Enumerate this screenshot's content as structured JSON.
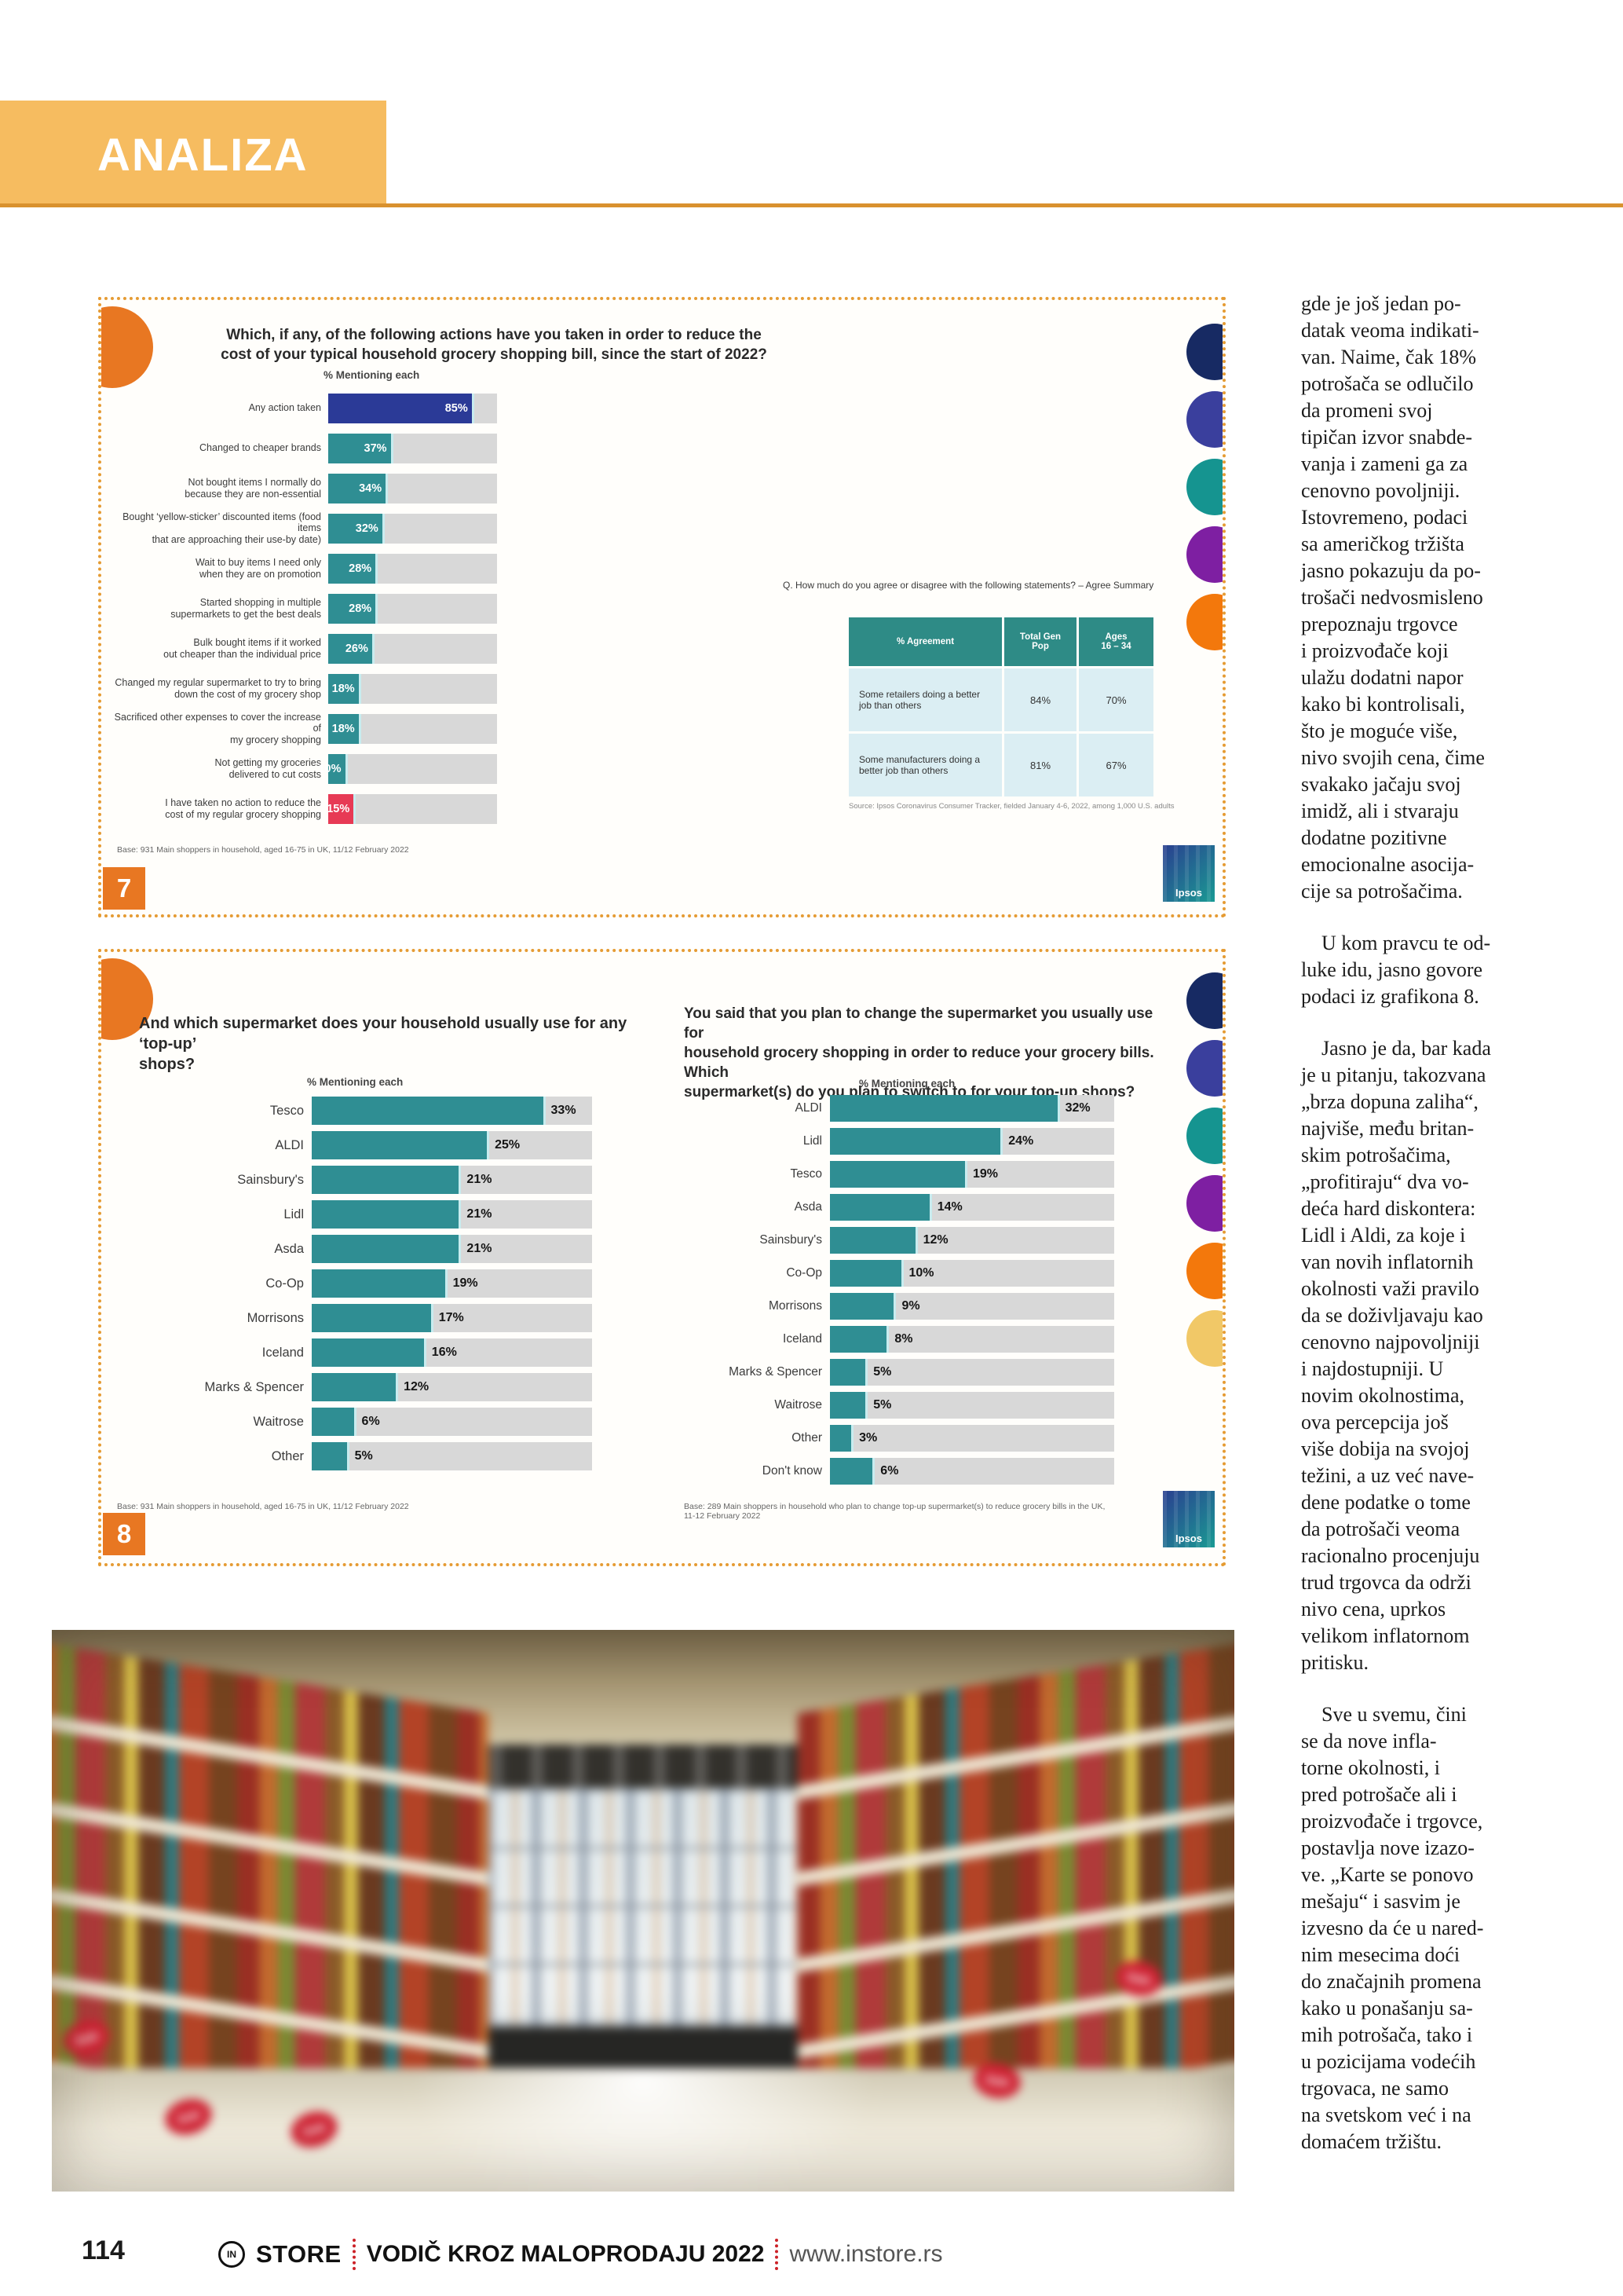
{
  "header": {
    "title": "ANALIZA"
  },
  "figure7": {
    "badge": "7",
    "corner_color": "#e87722",
    "question": "Which, if any, of the following actions have you taken in order to reduce the\ncost of your typical household grocery shopping bill, since the start of 2022?",
    "axis_label": "% Mentioning each",
    "rows": [
      {
        "label": "Any action taken",
        "value": 85,
        "value_label": "85%",
        "color": "#2b3a97"
      },
      {
        "label": "Changed to cheaper brands",
        "value": 37,
        "value_label": "37%"
      },
      {
        "label": "Not bought items I normally do\nbecause they are non-essential",
        "value": 34,
        "value_label": "34%"
      },
      {
        "label": "Bought ‘yellow-sticker’ discounted items (food items\nthat are approaching their use-by date)",
        "value": 32,
        "value_label": "32%"
      },
      {
        "label": "Wait to buy items I need only\nwhen they are on promotion",
        "value": 28,
        "value_label": "28%"
      },
      {
        "label": "Started shopping in multiple\nsupermarkets to get the best deals",
        "value": 28,
        "value_label": "28%"
      },
      {
        "label": "Bulk bought items if it worked\nout cheaper than the individual price",
        "value": 26,
        "value_label": "26%"
      },
      {
        "label": "Changed my regular supermarket to try to bring\ndown the cost of my grocery shop",
        "value": 18,
        "value_label": "18%"
      },
      {
        "label": "Sacrificed other expenses to cover the increase of\nmy grocery shopping",
        "value": 18,
        "value_label": "18%"
      },
      {
        "label": "Not getting my groceries\ndelivered to cut costs",
        "value": 10,
        "value_label": "10%"
      },
      {
        "label": "I have taken no action to reduce the\ncost of my regular grocery shopping",
        "value": 15,
        "value_label": "15%",
        "color": "#e73a55"
      }
    ],
    "base_note": "Base: 931 Main shoppers in household, aged 16-75 in UK, 11/12 February 2022",
    "agree": {
      "question": "Q. How much do you agree or disagree with the following statements? – Agree Summary",
      "headers": [
        "% Agreement",
        "Total Gen\nPop",
        "Ages\n16 – 34"
      ],
      "rows": [
        {
          "statement": "Some retailers doing a better\njob than others",
          "total": "84%",
          "young": "70%"
        },
        {
          "statement": "Some manufacturers doing a\nbetter job than others",
          "total": "81%",
          "young": "67%"
        }
      ],
      "source": "Source: Ipsos Coronavirus Consumer Tracker, fielded January 4-6, 2022, among 1,000 U.S. adults"
    },
    "logo": "Ipsos",
    "side_dots": [
      "#172a63",
      "#3a3f9d",
      "#159490",
      "#7e1fa2",
      "#f3780c"
    ]
  },
  "figure8": {
    "badge": "8",
    "corner_color": "#e87722",
    "left": {
      "question": "And which supermarket does your household usually use for any ‘top-up’\nshops?",
      "axis_label": "% Mentioning each",
      "rows": [
        {
          "label": "Tesco",
          "value": 33,
          "value_label": "33%"
        },
        {
          "label": "ALDI",
          "value": 25,
          "value_label": "25%"
        },
        {
          "label": "Sainsbury's",
          "value": 21,
          "value_label": "21%"
        },
        {
          "label": "Lidl",
          "value": 21,
          "value_label": "21%"
        },
        {
          "label": "Asda",
          "value": 21,
          "value_label": "21%"
        },
        {
          "label": "Co-Op",
          "value": 19,
          "value_label": "19%"
        },
        {
          "label": "Morrisons",
          "value": 17,
          "value_label": "17%"
        },
        {
          "label": "Iceland",
          "value": 16,
          "value_label": "16%"
        },
        {
          "label": "Marks & Spencer",
          "value": 12,
          "value_label": "12%"
        },
        {
          "label": "Waitrose",
          "value": 6,
          "value_label": "6%"
        },
        {
          "label": "Other",
          "value": 5,
          "value_label": "5%"
        }
      ],
      "base_note": "Base: 931 Main shoppers in household, aged 16-75 in UK, 11/12 February 2022"
    },
    "right": {
      "question": "You said that you plan to change the supermarket you usually use for\nhousehold grocery shopping in order to reduce your grocery bills. Which\nsupermarket(s) do you plan to switch to for your top-up shops?",
      "axis_label": "% Mentioning each",
      "rows": [
        {
          "label": "ALDI",
          "value": 32,
          "value_label": "32%"
        },
        {
          "label": "Lidl",
          "value": 24,
          "value_label": "24%"
        },
        {
          "label": "Tesco",
          "value": 19,
          "value_label": "19%"
        },
        {
          "label": "Asda",
          "value": 14,
          "value_label": "14%"
        },
        {
          "label": "Sainsbury's",
          "value": 12,
          "value_label": "12%"
        },
        {
          "label": "Co-Op",
          "value": 10,
          "value_label": "10%"
        },
        {
          "label": "Morrisons",
          "value": 9,
          "value_label": "9%"
        },
        {
          "label": "Iceland",
          "value": 8,
          "value_label": "8%"
        },
        {
          "label": "Marks & Spencer",
          "value": 5,
          "value_label": "5%"
        },
        {
          "label": "Waitrose",
          "value": 5,
          "value_label": "5%"
        },
        {
          "label": "Other",
          "value": 3,
          "value_label": "3%"
        },
        {
          "label": "Don't know",
          "value": 6,
          "value_label": "6%"
        }
      ],
      "base_note": "Base: 289 Main shoppers in household who plan to change top-up supermarket(s) to reduce grocery bills in the UK,\n11-12 February 2022"
    },
    "logo": "Ipsos",
    "side_dots": [
      "#172a63",
      "#3a3f9d",
      "#159490",
      "#7e1fa2",
      "#f3780c",
      "#f1c867"
    ]
  },
  "photo": {
    "sale_label": "Sale"
  },
  "article": {
    "paragraphs": [
      "gde je još jedan po-\ndatak veoma indikati-\nvan. Naime, čak 18%\npotrošača se odlučilo\nda promeni svoj\ntipičan izvor snabde-\nvanja i zameni ga za\ncenovno povoljniji.\nIstovremeno, podaci\nsa američkog tržišta\njasno pokazuju da po-\ntrošači nedvosmisleno\nprepoznaju trgovce\ni proizvođače koji\nulažu dodatni napor\nkako bi kontrolisali,\nšto je moguće više,\nnivo svojih cena, čime\nsvakako jačaju svoj\nimidž, ali i stvaraju\ndodatne pozitivne\nemocionalne asocija-\ncije sa potrošačima.",
      "U kom pravcu te od-\nluke idu, jasno govore\npodaci iz grafikona 8.",
      "Jasno je da, bar kada\nje u pitanju, takozvana\n„brza dopuna zaliha“,\nnajviše, među britan-\nskim potrošačima,\n„profitiraju“ dva vo-\ndeća hard diskontera:\nLidl i Aldi, za koje i\nvan novih inflatornih\nokolnosti važi pravilo\nda se doživljavaju kao\ncenovno najpovoljniji\ni najdostupniji. U\nnovim okolnostima,\nova percepcija još\nviše dobija na svojoj\ntežini, a uz već nave-\ndene podatke o tome\nda potrošači veoma\nracionalno procenjuju\ntrud trgovca da održi\nnivo cena, uprkos\nvelikom inflatornom\npritisku.",
      "Sve u svemu, čini\nse da nove infla-\ntorne okolnosti, i\npred potrošače ali i\nproizvođače i trgovce,\npostavlja nove izazo-\nve. „Karte se ponovo\nmešaju“ i sasvim je\nizvesno da će u nared-\nnim mesecima doći\ndo značajnih promena\nkako u ponašanju sa-\nmih potrošača, tako i\nu pozicijama vodećih\ntrgovaca, ne samo\nna svetskom već i na\ndomaćem tržištu."
    ]
  },
  "footer": {
    "page_number": "114",
    "brand_in": "IN",
    "brand": "STORE",
    "guide": "VODIČ KROZ MALOPRODAJU 2022",
    "site": "www.instore.rs"
  },
  "colors": {
    "banner": "#f6bc60",
    "banner_rule": "#d9912e",
    "card_border_dots": "#e59b33",
    "bar_teal": "#2f8e93",
    "bar_navy": "#2b3a97",
    "bar_red": "#e73a55",
    "bar_track": "#d8d8d8",
    "table_header": "#2e8b86",
    "table_row": "#dbeef3",
    "badge_orange": "#e87722",
    "footer_separator_red": "#cc2127"
  },
  "chart_data": [
    {
      "type": "bar",
      "title": "Which, if any, of the following actions have you taken in order to reduce the cost of your typical household grocery shopping bill, since the start of 2022?",
      "xlabel": "% Mentioning each",
      "xlim": [
        0,
        100
      ],
      "categories": [
        "Any action taken",
        "Changed to cheaper brands",
        "Not bought items I normally do because they are non-essential",
        "Bought ‘yellow-sticker’ discounted items (food items that are approaching their use-by date)",
        "Wait to buy items I need only when they are on promotion",
        "Started shopping in multiple supermarkets to get the best deals",
        "Bulk bought items if it worked out cheaper than the individual price",
        "Changed my regular supermarket to try to bring down the cost of my grocery shop",
        "Sacrificed other expenses to cover the increase of my grocery shopping",
        "Not getting my groceries delivered to cut costs",
        "I have taken no action to reduce the cost of my regular grocery shopping"
      ],
      "values": [
        85,
        37,
        34,
        32,
        28,
        28,
        26,
        18,
        18,
        10,
        15
      ],
      "note": "Base: 931 Main shoppers in household, aged 16-75 in UK, 11/12 February 2022"
    },
    {
      "type": "table",
      "title": "Q. How much do you agree or disagree with the following statements? – Agree Summary",
      "columns": [
        "% Agreement",
        "Total Gen Pop",
        "Ages 16 – 34"
      ],
      "rows": [
        [
          "Some retailers doing a better job than others",
          "84%",
          "70%"
        ],
        [
          "Some manufacturers doing a better job than others",
          "81%",
          "67%"
        ]
      ],
      "note": "Source: Ipsos Coronavirus Consumer Tracker, fielded January 4-6, 2022, among 1,000 U.S. adults"
    },
    {
      "type": "bar",
      "title": "And which supermarket does your household usually use for any ‘top-up’ shops?",
      "xlabel": "% Mentioning each",
      "xlim": [
        0,
        40
      ],
      "categories": [
        "Tesco",
        "ALDI",
        "Sainsbury's",
        "Lidl",
        "Asda",
        "Co-Op",
        "Morrisons",
        "Iceland",
        "Marks & Spencer",
        "Waitrose",
        "Other"
      ],
      "values": [
        33,
        25,
        21,
        21,
        21,
        19,
        17,
        16,
        12,
        6,
        5
      ],
      "note": "Base: 931 Main shoppers in household, aged 16-75 in UK, 11/12 February 2022"
    },
    {
      "type": "bar",
      "title": "You said that you plan to change the supermarket you usually use for household grocery shopping in order to reduce your grocery bills. Which supermarket(s) do you plan to switch to for your top-up shops?",
      "xlabel": "% Mentioning each",
      "xlim": [
        0,
        40
      ],
      "categories": [
        "ALDI",
        "Lidl",
        "Tesco",
        "Asda",
        "Sainsbury's",
        "Co-Op",
        "Morrisons",
        "Iceland",
        "Marks & Spencer",
        "Waitrose",
        "Other",
        "Don't know"
      ],
      "values": [
        32,
        24,
        19,
        14,
        12,
        10,
        9,
        8,
        5,
        5,
        3,
        6
      ],
      "note": "Base: 289 Main shoppers in household who plan to change top-up supermarket(s) to reduce grocery bills in the UK, 11-12 February 2022"
    }
  ]
}
